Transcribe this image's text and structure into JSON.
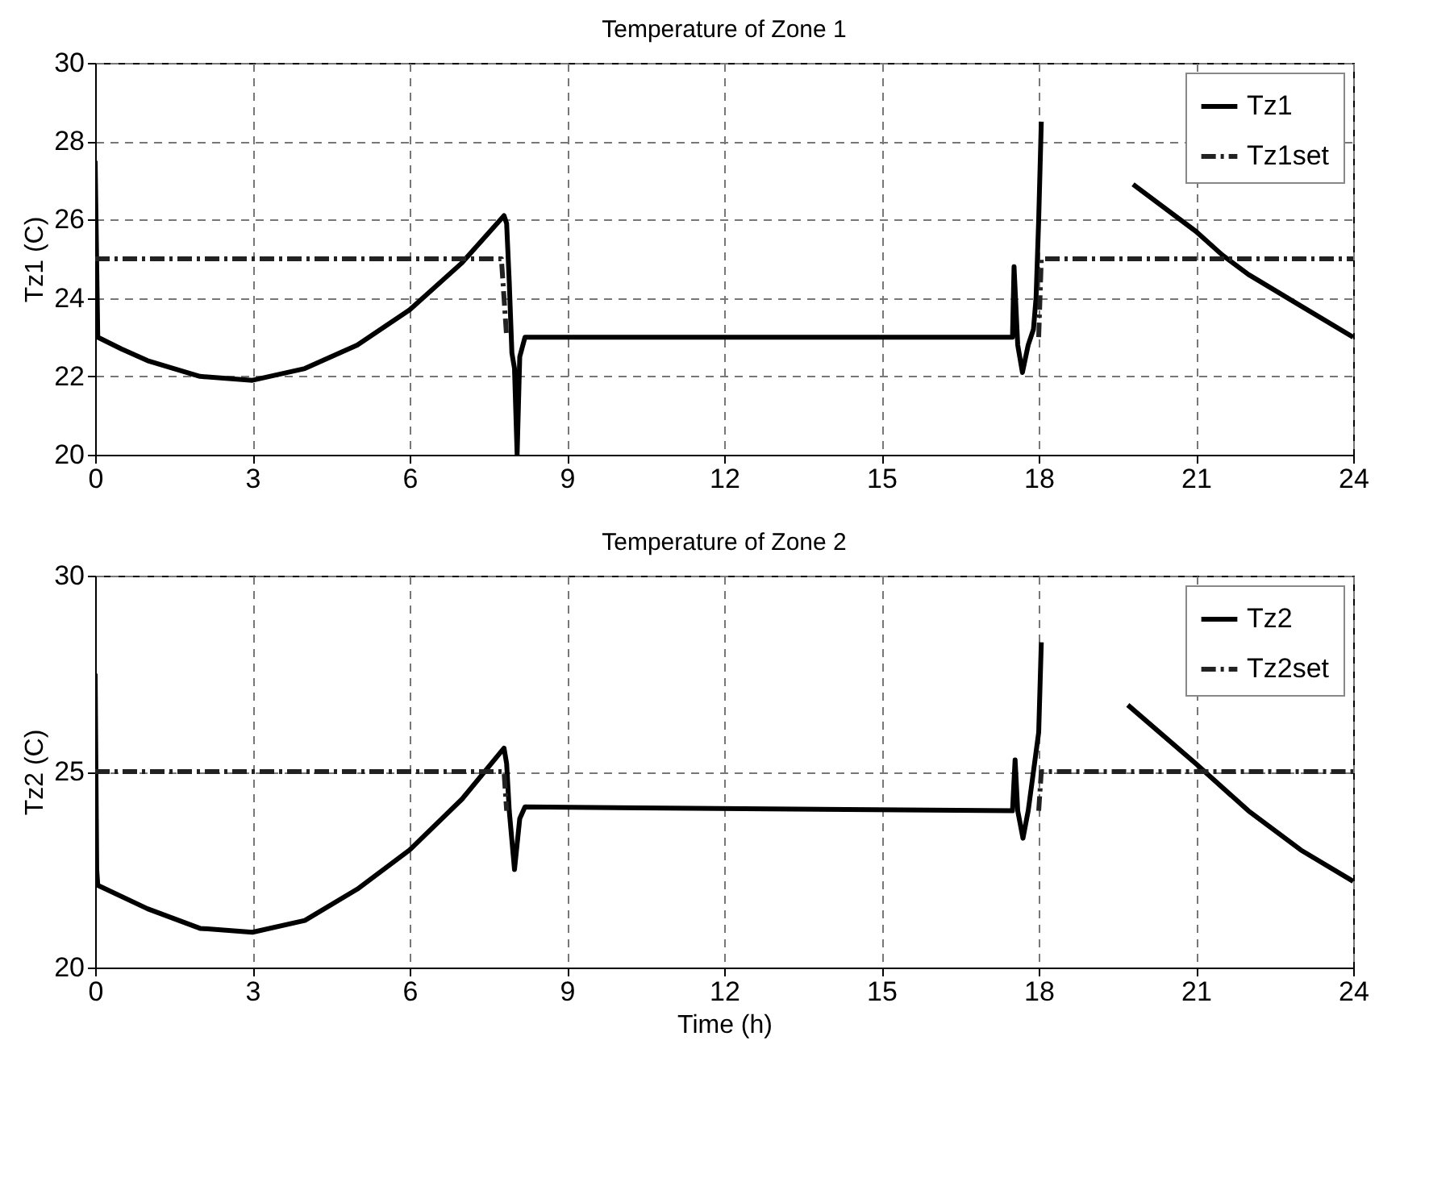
{
  "chart_data": [
    {
      "type": "line",
      "title": "Temperature of Zone 1",
      "ylabel": "Tz1 (C)",
      "series": [
        {
          "name": "Tz1",
          "color": "#000000",
          "line_style": "solid",
          "x": [
            0,
            0.05,
            0.5,
            1,
            2,
            3,
            4,
            5,
            6,
            7,
            7.8,
            7.85,
            7.9,
            7.95,
            8.0,
            8.05,
            8.1,
            8.2,
            17.5,
            17.53,
            17.6,
            17.69,
            17.8,
            17.9,
            17.95,
            18.0,
            18.05,
            18.1,
            19.8,
            21,
            21.5,
            22,
            23,
            24
          ],
          "values": [
            27.5,
            23.0,
            22.7,
            22.4,
            22.0,
            21.9,
            22.2,
            22.8,
            23.7,
            24.9,
            26.1,
            25.9,
            24.4,
            22.6,
            22.2,
            20.0,
            22.5,
            23.0,
            23.0,
            24.8,
            22.8,
            22.1,
            22.8,
            23.2,
            24.0,
            26.0,
            28.5,
            null,
            26.9,
            25.7,
            25.1,
            24.6,
            23.8,
            23.0
          ]
        },
        {
          "name": "Tz1set",
          "color": "#222222",
          "line_style": "dashed",
          "x": [
            0,
            7.75,
            7.8,
            7.85,
            7.9,
            18.0,
            18.05,
            24
          ],
          "values": [
            25,
            25,
            24.0,
            23,
            null,
            23,
            25,
            25
          ]
        }
      ],
      "xlim": [
        0,
        24
      ],
      "xticks": [
        0,
        3,
        6,
        9,
        12,
        15,
        18,
        21,
        24
      ],
      "ylim": [
        20,
        30
      ],
      "yticks": [
        20,
        22,
        24,
        26,
        28,
        30
      ],
      "grid": true,
      "legend": "top right"
    },
    {
      "type": "line",
      "title": "Temperature of Zone 2",
      "xlabel": "Time (h)",
      "ylabel": "Tz2 (C)",
      "series": [
        {
          "name": "Tz2",
          "color": "#000000",
          "line_style": "solid",
          "x": [
            0,
            0.03,
            0.05,
            1,
            2,
            3,
            4,
            5,
            6,
            7,
            7.8,
            7.85,
            7.9,
            8.0,
            8.1,
            8.2,
            17.5,
            17.55,
            17.6,
            17.7,
            17.8,
            18.0,
            18.05,
            18.1,
            19.7,
            21,
            22,
            23,
            24
          ],
          "values": [
            27.5,
            22.5,
            22.1,
            21.5,
            21.0,
            20.9,
            21.2,
            22.0,
            23.0,
            24.3,
            25.6,
            25.2,
            24.0,
            22.5,
            23.8,
            24.1,
            24.0,
            25.3,
            24.0,
            23.3,
            24.0,
            26.0,
            28.3,
            null,
            26.7,
            25.2,
            24.0,
            23.0,
            22.2
          ]
        },
        {
          "name": "Tz2set",
          "color": "#222222",
          "line_style": "dashed",
          "x": [
            0,
            7.8,
            7.85,
            7.9,
            18.0,
            18.05,
            24
          ],
          "values": [
            25,
            25,
            24.0,
            null,
            24.0,
            25,
            25
          ]
        }
      ],
      "xlim": [
        0,
        24
      ],
      "xticks": [
        0,
        3,
        6,
        9,
        12,
        15,
        18,
        21,
        24
      ],
      "ylim": [
        20,
        30
      ],
      "yticks": [
        20,
        25,
        30
      ],
      "grid": true,
      "legend": "top right"
    }
  ]
}
